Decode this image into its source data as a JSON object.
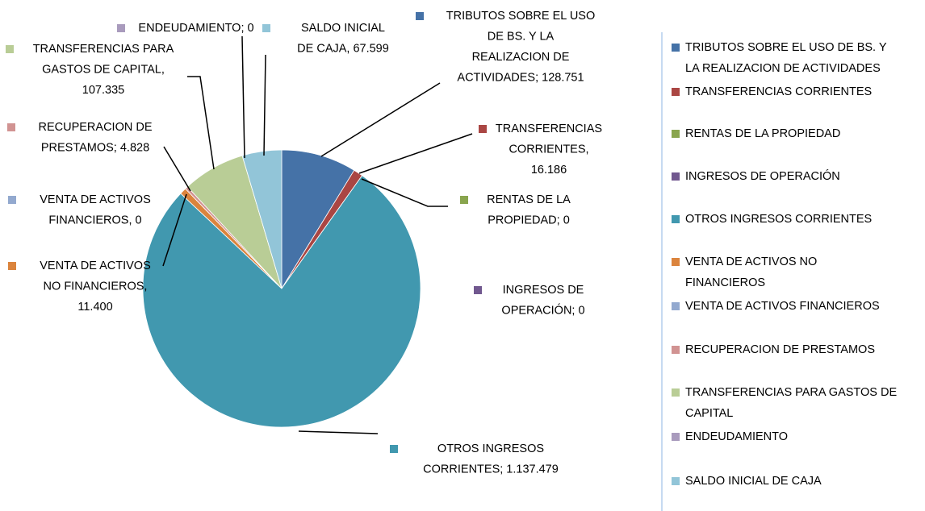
{
  "chart_data": {
    "type": "pie",
    "categories": [
      "TRIBUTOS SOBRE EL USO DE BS. Y LA REALIZACION DE ACTIVIDADES",
      "TRANSFERENCIAS CORRIENTES",
      "RENTAS DE LA PROPIEDAD",
      "INGRESOS DE OPERACIÓN",
      "OTROS INGRESOS CORRIENTES",
      "VENTA DE ACTIVOS NO FINANCIEROS",
      "VENTA DE ACTIVOS FINANCIEROS",
      "RECUPERACION DE PRESTAMOS",
      "TRANSFERENCIAS PARA GASTOS DE CAPITAL",
      "ENDEUDAMIENTO",
      "SALDO INICIAL DE CAJA"
    ],
    "values": [
      128751,
      16186,
      0,
      0,
      1137479,
      11400,
      0,
      4828,
      107335,
      0,
      67599
    ],
    "value_labels": [
      "TRIBUTOS SOBRE EL USO DE BS. Y LA REALIZACION DE ACTIVIDADES; 128.751",
      "TRANSFERENCIAS CORRIENTES, 16.186",
      "RENTAS DE LA PROPIEDAD; 0",
      "INGRESOS DE OPERACIÓN; 0",
      "OTROS INGRESOS CORRIENTES; 1.137.479",
      "VENTA DE ACTIVOS NO FINANCIEROS, 11.400",
      "VENTA DE ACTIVOS FINANCIEROS, 0",
      "RECUPERACION DE PRESTAMOS; 4.828",
      "TRANSFERENCIAS PARA GASTOS DE CAPITAL, 107.335",
      "ENDEUDAMIENTO; 0",
      "SALDO INICIAL DE CAJA, 67.599"
    ],
    "colors": [
      "#4572A7",
      "#AA4643",
      "#89A54E",
      "#71588F",
      "#4198AF",
      "#DB843D",
      "#93A9CF",
      "#D19392",
      "#B9CD96",
      "#A99BBD",
      "#92C5D8"
    ],
    "legend": "right"
  }
}
